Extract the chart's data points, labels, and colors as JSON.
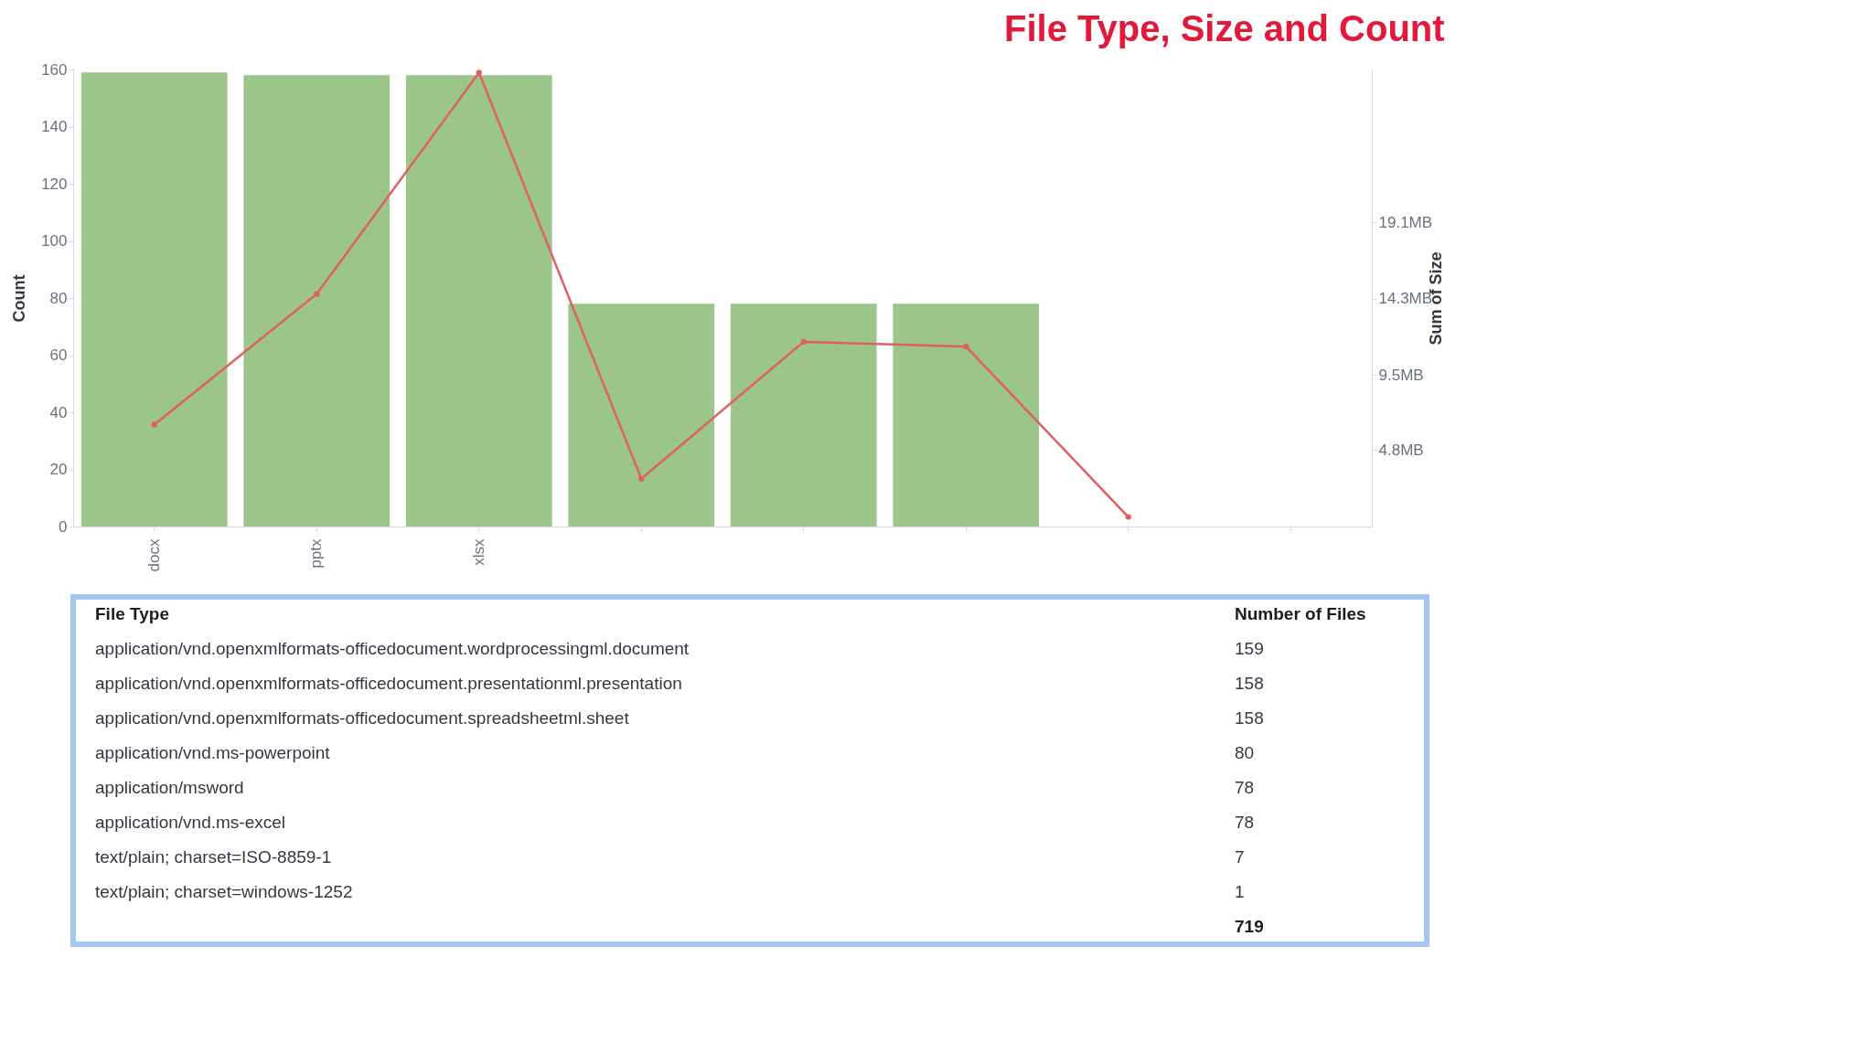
{
  "chart_data": [
    {
      "type": "bar",
      "title": "File Type, Size and Count",
      "ylabel": "Count",
      "y2label": "Sum of Size",
      "categories": [
        "docx",
        "pptx",
        "xlsx",
        null,
        null,
        null,
        null,
        null
      ],
      "series": [
        {
          "color": "#9bc58a",
          "values": [
            159,
            158,
            158,
            78,
            78,
            78,
            null,
            null
          ]
        },
        {
          "type": "line",
          "axis": "y2",
          "color": "#e0605f",
          "values": [
            6.4,
            14.6,
            28.5,
            3.0,
            11.6,
            11.3,
            0.6,
            null
          ]
        }
      ],
      "ylim": [
        0,
        160
      ],
      "yticks": [
        0,
        20,
        40,
        60,
        80,
        100,
        120,
        140,
        160
      ],
      "y2lim": [
        0,
        28.7
      ],
      "y2ticks": [
        {
          "value": 4.8,
          "label": "4.8MB"
        },
        {
          "value": 9.5,
          "label": "9.5MB"
        },
        {
          "value": 14.3,
          "label": "14.3MB"
        },
        {
          "value": 19.1,
          "label": "19.1MB"
        }
      ],
      "marker": "circle",
      "grid": false,
      "legend": false
    },
    {
      "type": "other",
      "xlabel": "File Type",
      "ylabel": "Number of Files",
      "categories": [
        "application/vnd.openxmlformats-officedocument.wordprocessingml.document",
        "application/vnd.openxmlformats-officedocument.presentationml.presentation",
        "application/vnd.openxmlformats-officedocument.spreadsheetml.sheet",
        "application/vnd.ms-powerpoint",
        "application/msword",
        "application/vnd.ms-excel",
        "text/plain; charset=ISO-8859-1",
        "text/plain; charset=windows-1252"
      ],
      "values": [
        159,
        158,
        158,
        80,
        78,
        78,
        7,
        1
      ],
      "data_labels": true,
      "annotations": [
        "719"
      ]
    }
  ]
}
